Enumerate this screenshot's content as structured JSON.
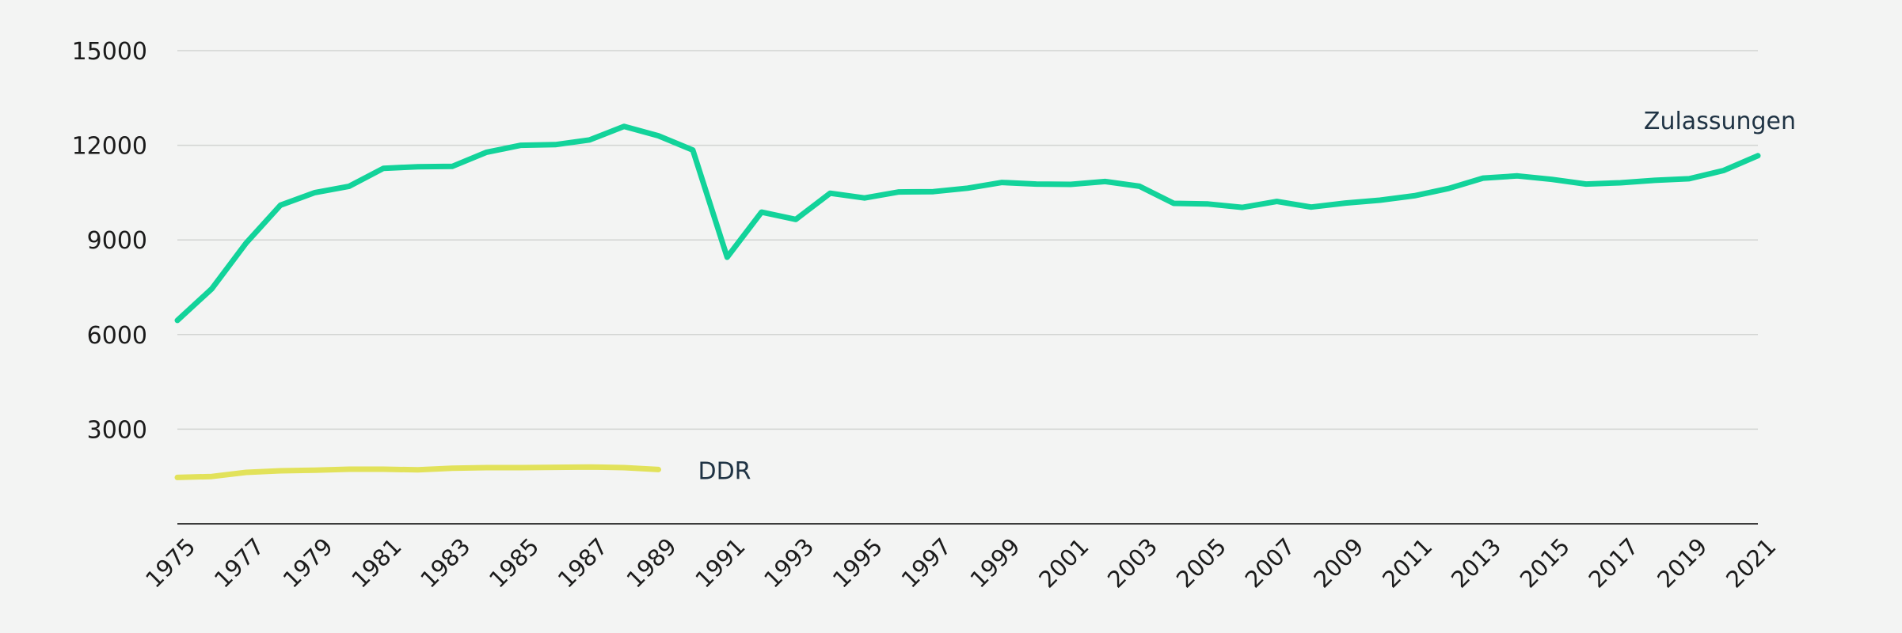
{
  "chart_data": {
    "type": "line",
    "title": "",
    "xlabel": "",
    "ylabel": "",
    "ylim": [
      0,
      15000
    ],
    "yticks": [
      "3000",
      "6000",
      "9000",
      "12000",
      "15000"
    ],
    "xticks": [
      "1975",
      "1977",
      "1979",
      "1981",
      "1983",
      "1985",
      "1987",
      "1989",
      "1991",
      "1993",
      "1995",
      "1997",
      "1999",
      "2001",
      "2003",
      "2005",
      "2007",
      "2009",
      "2011",
      "2013",
      "2015",
      "2017",
      "2019",
      "2021"
    ],
    "grid": true,
    "series": [
      {
        "name": "Zulassungen",
        "color": "#12d39a",
        "x": [
          1975,
          1976,
          1977,
          1978,
          1979,
          1980,
          1981,
          1982,
          1983,
          1984,
          1985,
          1986,
          1987,
          1988,
          1989,
          1990,
          1991,
          1992,
          1993,
          1994,
          1995,
          1996,
          1997,
          1998,
          1999,
          2000,
          2001,
          2002,
          2003,
          2004,
          2005,
          2006,
          2007,
          2008,
          2009,
          2010,
          2011,
          2012,
          2013,
          2014,
          2015,
          2016,
          2017,
          2018,
          2019,
          2020,
          2021
        ],
        "values": [
          6450,
          7450,
          8900,
          10100,
          10500,
          10700,
          11270,
          11320,
          11330,
          11780,
          12000,
          12020,
          12170,
          12600,
          12300,
          11850,
          8450,
          9880,
          9650,
          10480,
          10330,
          10520,
          10530,
          10640,
          10820,
          10770,
          10760,
          10850,
          10700,
          10160,
          10140,
          10030,
          10220,
          10040,
          10170,
          10260,
          10400,
          10630,
          10960,
          11030,
          10920,
          10770,
          10810,
          10890,
          10940,
          11200,
          11670
        ]
      },
      {
        "name": "DDR",
        "color": "#e2e25a",
        "x": [
          1975,
          1976,
          1977,
          1978,
          1979,
          1980,
          1981,
          1982,
          1983,
          1984,
          1985,
          1986,
          1987,
          1988,
          1989
        ],
        "values": [
          1470,
          1500,
          1630,
          1680,
          1700,
          1730,
          1730,
          1710,
          1760,
          1780,
          1780,
          1790,
          1800,
          1780,
          1720
        ]
      }
    ]
  }
}
